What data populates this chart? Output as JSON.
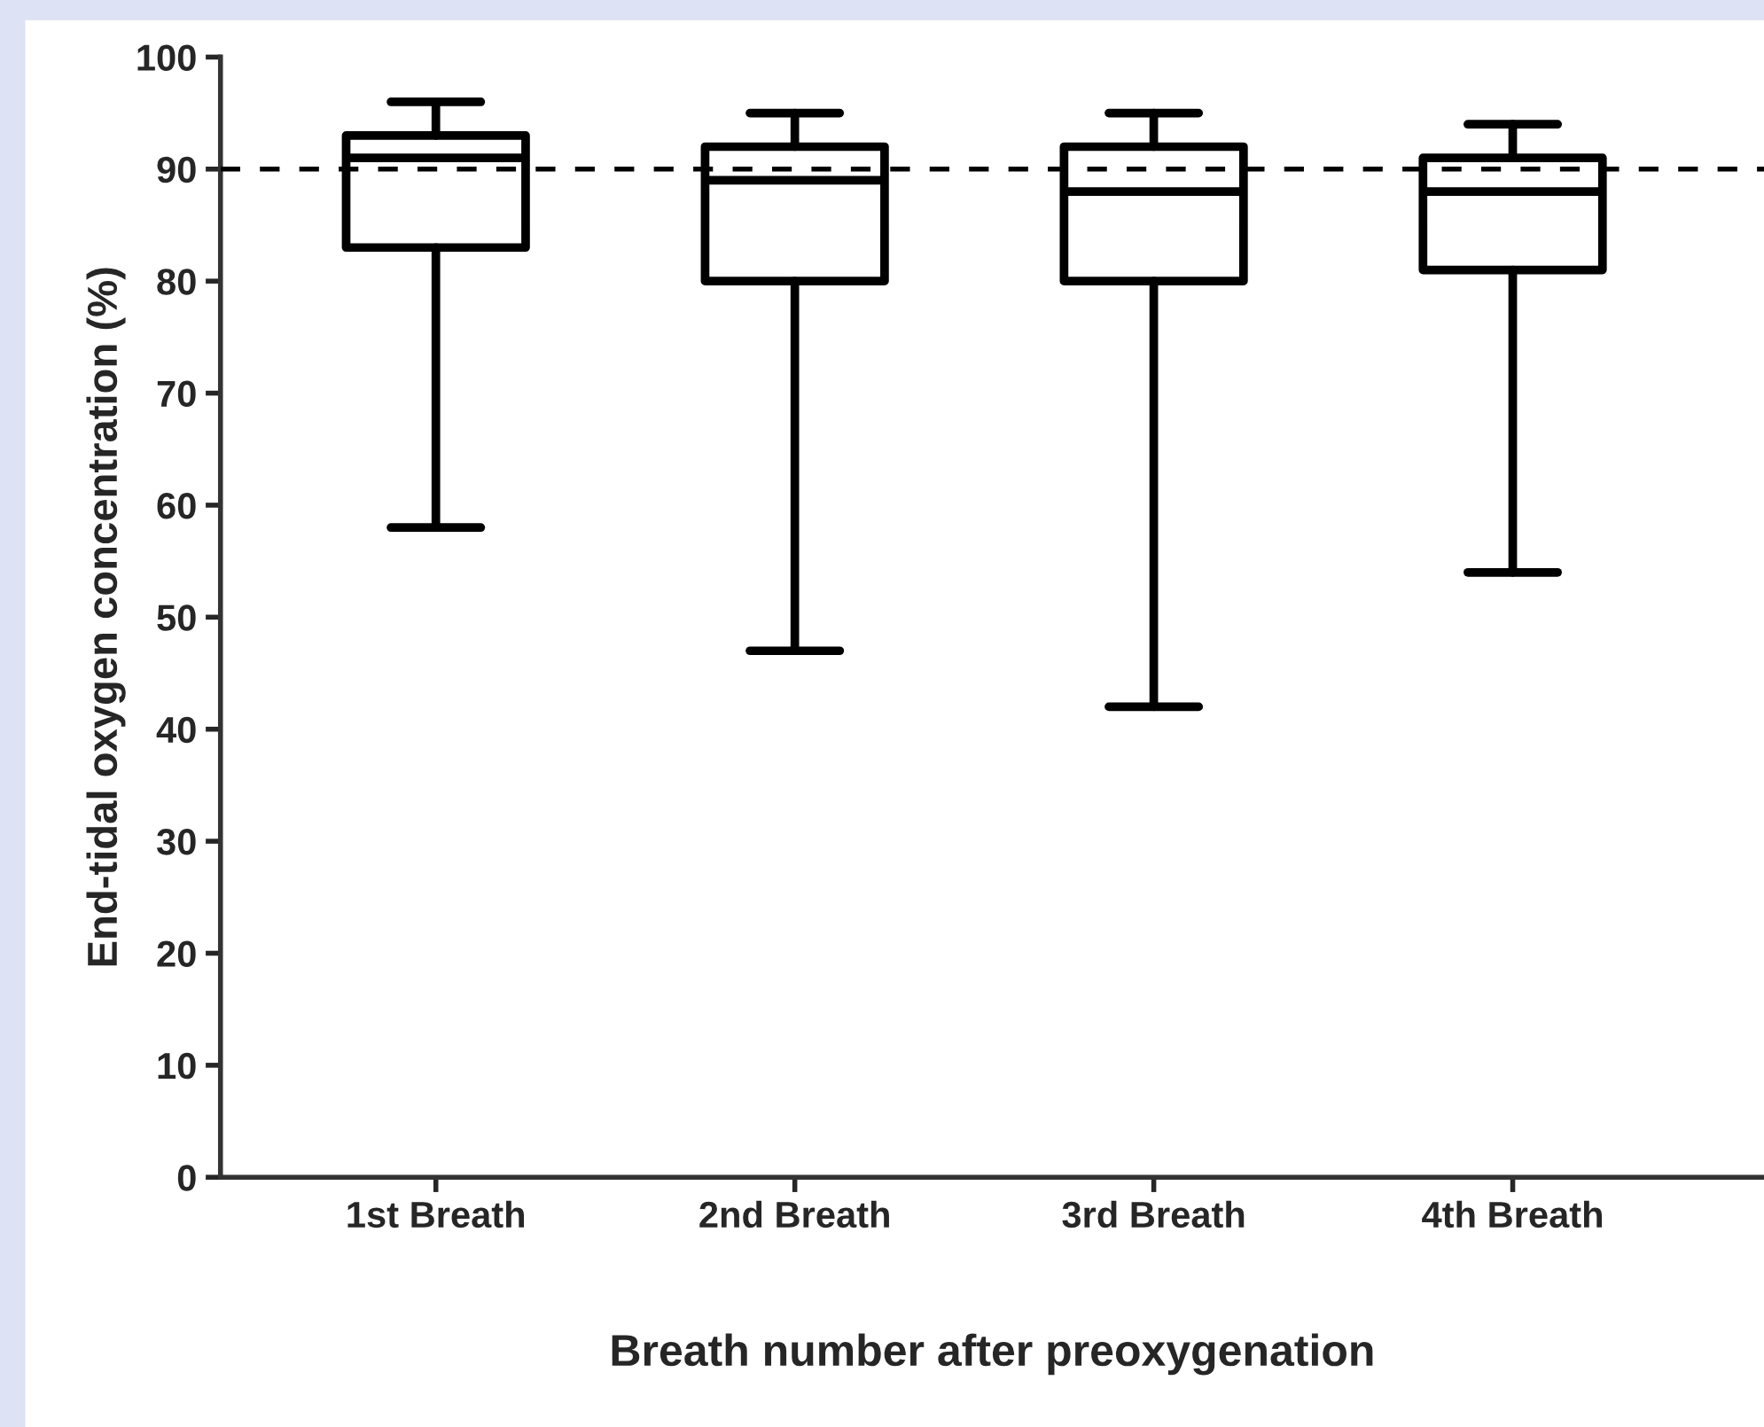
{
  "chart_data": {
    "type": "box",
    "xlabel": "Breath number after preoxygenation",
    "ylabel": "End-tidal oxygen concentration (%)",
    "categories": [
      "1st Breath",
      "2nd Breath",
      "3rd Breath",
      "4th Breath"
    ],
    "boxes": [
      {
        "low": 58,
        "q1": 83,
        "median": 91,
        "q3": 93,
        "high": 96
      },
      {
        "low": 47,
        "q1": 80,
        "median": 89,
        "q3": 92,
        "high": 95
      },
      {
        "low": 42,
        "q1": 80,
        "median": 88,
        "q3": 92,
        "high": 95
      },
      {
        "low": 54,
        "q1": 81,
        "median": 88,
        "q3": 91,
        "high": 94
      }
    ],
    "ylim": [
      0,
      100
    ],
    "yticks": [
      0,
      10,
      20,
      30,
      40,
      50,
      60,
      70,
      80,
      90,
      100
    ],
    "grid": false,
    "ref_lines": [
      {
        "axis": "y",
        "value": 90,
        "color": "#000000",
        "line_style": "dashed"
      }
    ],
    "color": "#000000"
  }
}
